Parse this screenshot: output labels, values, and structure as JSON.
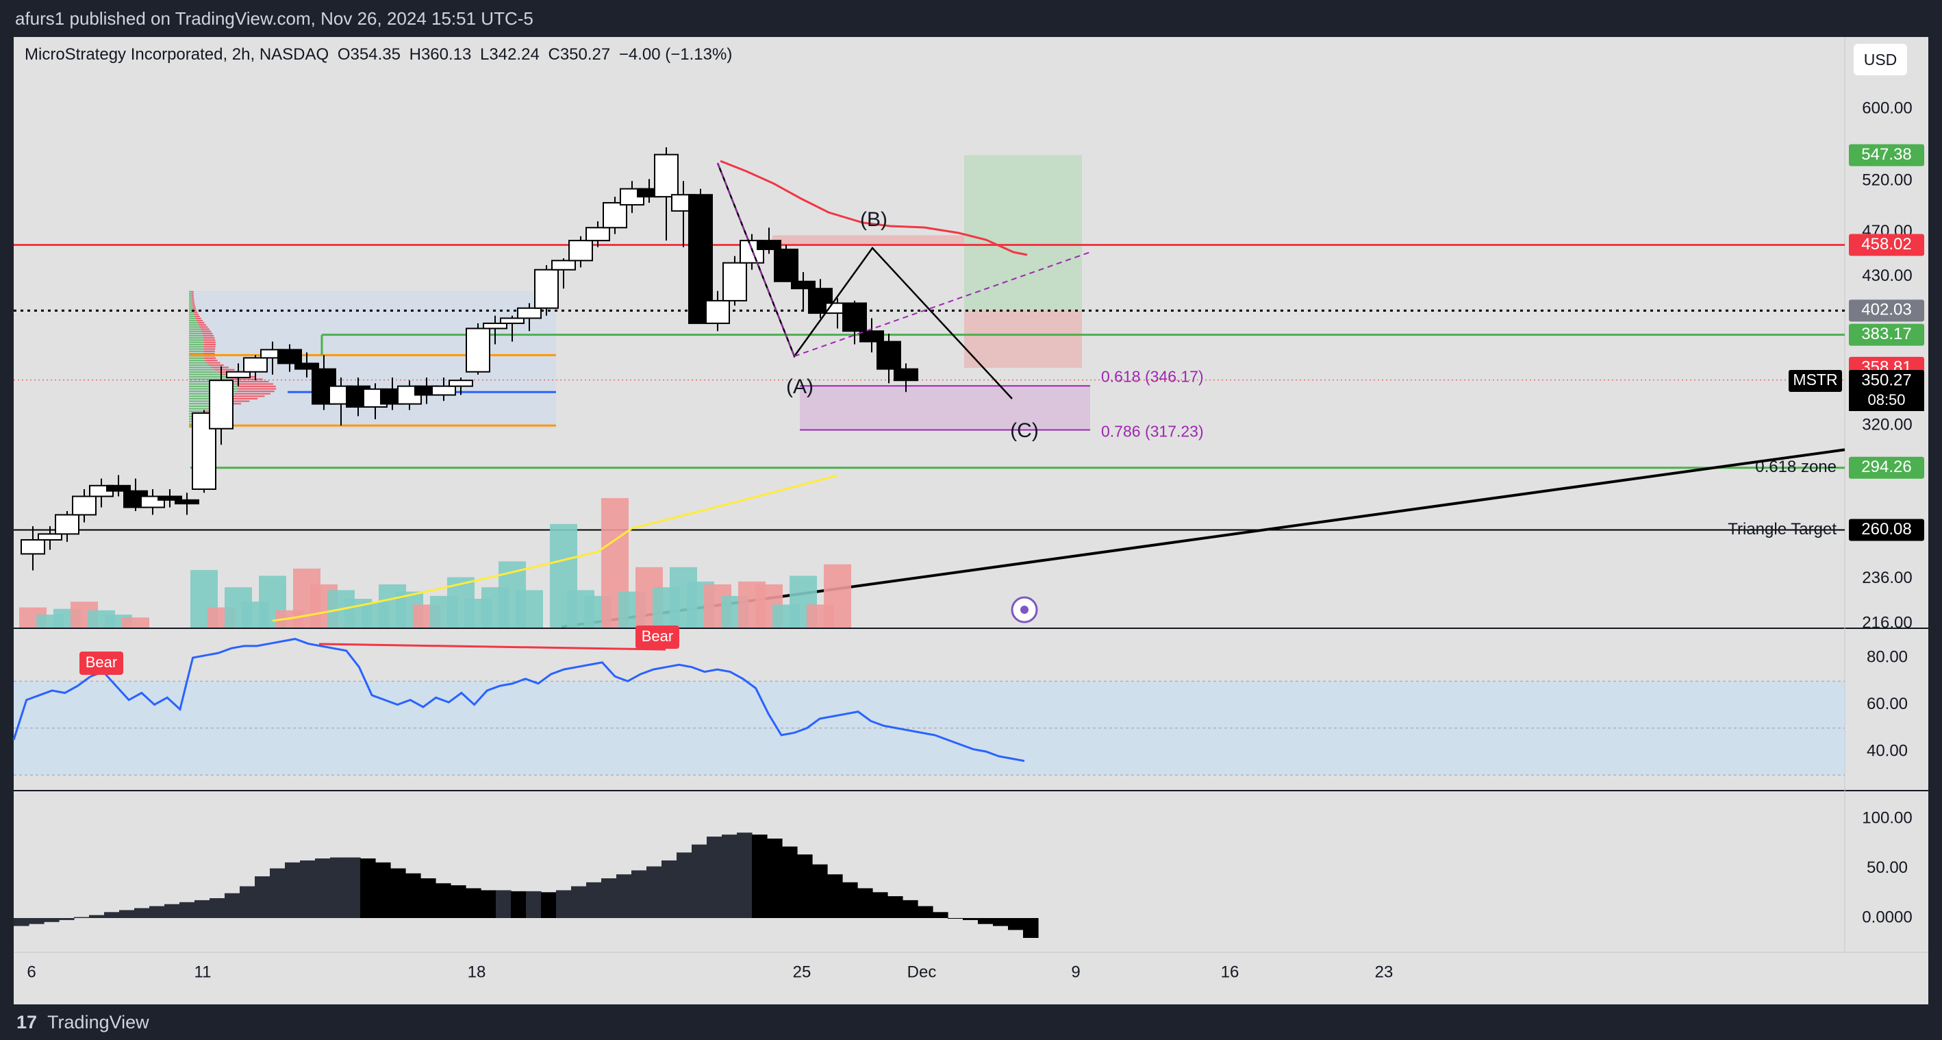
{
  "header": {
    "published": "afurs1 published on TradingView.com, Nov 26, 2024 15:51 UTC-5"
  },
  "footer": {
    "brand_glyph": "17",
    "brand": "TradingView"
  },
  "legend": {
    "instrument": "MicroStrategy Incorporated, 2h, NASDAQ",
    "open_label": "O",
    "open": "354.35",
    "high_label": "H",
    "high": "360.13",
    "low_label": "L",
    "low": "342.24",
    "close_label": "C",
    "close": "350.27",
    "change": "−4.00 (−1.13%)"
  },
  "currency_button": "USD",
  "colors": {
    "up": "#ffffff",
    "down": "#000000",
    "red": "#f23645",
    "green": "#4caf50",
    "blue": "#2962ff",
    "rsi": "#2962ff",
    "yellow": "#ffeb3b",
    "purple": "#9c27b0",
    "orange": "#ff9800"
  },
  "chart_data": [
    {
      "type": "candlestick",
      "panel": "price",
      "x_axis": {
        "ticks": [
          {
            "label": "6",
            "bar": 0
          },
          {
            "label": "11",
            "bar": 10
          },
          {
            "label": "18",
            "bar": 26
          },
          {
            "label": "25",
            "bar": 45
          },
          {
            "label": "Dec",
            "bar": 52
          },
          {
            "label": "9",
            "bar": 61
          },
          {
            "label": "16",
            "bar": 70
          },
          {
            "label": "23",
            "bar": 79
          }
        ]
      },
      "y_axis": {
        "ticks": [
          "600.00",
          "520.00",
          "470.00",
          "430.00",
          "320.00",
          "236.00",
          "216.00"
        ],
        "tick_values": [
          600,
          520,
          470,
          430,
          320,
          236,
          216
        ]
      },
      "price_labels": [
        {
          "text": "547.38",
          "value": 547.38,
          "color": "#4caf50"
        },
        {
          "text": "458.02",
          "value": 458.02,
          "color": "#f23645"
        },
        {
          "text": "402.03",
          "value": 402.03,
          "color": "#787b86"
        },
        {
          "text": "383.17",
          "value": 383.17,
          "color": "#4caf50"
        },
        {
          "text": "358.81",
          "value": 358.81,
          "color": "#f23645"
        },
        {
          "text": "350.27",
          "value": 350.27,
          "color": "#000000"
        },
        {
          "text": "294.26",
          "value": 294.26,
          "color": "#4caf50"
        },
        {
          "text": "260.08",
          "value": 260.08,
          "color": "#000000"
        }
      ],
      "symbol": "MSTR",
      "countdown": "08:50",
      "levels": [
        {
          "name": "0.618 zone",
          "value": 294.26,
          "color": "#4caf50"
        },
        {
          "name": "Triangle Target",
          "value": 260.08,
          "color": "#000000"
        },
        {
          "name": "",
          "value": 458.02,
          "color": "#f23645"
        },
        {
          "name": "",
          "value": 402.03,
          "color": "#000000",
          "dotted": true
        },
        {
          "name": "",
          "value": 383.17,
          "color": "#4caf50"
        }
      ],
      "fib_labels": [
        {
          "text": "0.618 (346.17)",
          "value": 346.17
        },
        {
          "text": "0.786 (317.23)",
          "value": 317.23
        }
      ],
      "wave_labels": [
        "(A)",
        "(B)",
        "(C)"
      ],
      "candles": [
        [
          248,
          262,
          240,
          255
        ],
        [
          255,
          262,
          250,
          258
        ],
        [
          258,
          270,
          254,
          268
        ],
        [
          268,
          282,
          264,
          278
        ],
        [
          278,
          288,
          272,
          284
        ],
        [
          284,
          290,
          278,
          281
        ],
        [
          281,
          288,
          270,
          272
        ],
        [
          272,
          282,
          268,
          278
        ],
        [
          278,
          282,
          272,
          276
        ],
        [
          276,
          280,
          268,
          274
        ],
        [
          282,
          330,
          280,
          328
        ],
        [
          318,
          360,
          308,
          350
        ],
        [
          352,
          362,
          346,
          356
        ],
        [
          356,
          368,
          350,
          366
        ],
        [
          366,
          378,
          354,
          372
        ],
        [
          372,
          376,
          356,
          362
        ],
        [
          362,
          370,
          352,
          358
        ],
        [
          358,
          368,
          330,
          334
        ],
        [
          334,
          352,
          320,
          346
        ],
        [
          346,
          352,
          326,
          332
        ],
        [
          332,
          348,
          324,
          344
        ],
        [
          344,
          352,
          330,
          334
        ],
        [
          334,
          350,
          330,
          346
        ],
        [
          346,
          352,
          334,
          340
        ],
        [
          340,
          352,
          336,
          346
        ],
        [
          346,
          352,
          340,
          350
        ],
        [
          356,
          392,
          354,
          388
        ],
        [
          388,
          398,
          376,
          392
        ],
        [
          392,
          398,
          378,
          396
        ],
        [
          396,
          408,
          386,
          404
        ],
        [
          404,
          440,
          398,
          436
        ],
        [
          436,
          446,
          420,
          444
        ],
        [
          444,
          466,
          438,
          462
        ],
        [
          462,
          480,
          456,
          474
        ],
        [
          474,
          504,
          468,
          498
        ],
        [
          496,
          520,
          488,
          512
        ],
        [
          512,
          522,
          498,
          504
        ],
        [
          504,
          556,
          462,
          548
        ],
        [
          490,
          520,
          456,
          506
        ],
        [
          506,
          512,
          392,
          392
        ],
        [
          392,
          418,
          386,
          410
        ],
        [
          410,
          448,
          406,
          442
        ],
        [
          442,
          468,
          436,
          462
        ],
        [
          462,
          474,
          450,
          454
        ],
        [
          454,
          458,
          426,
          426
        ],
        [
          426,
          434,
          402,
          420
        ],
        [
          420,
          428,
          396,
          400
        ],
        [
          400,
          412,
          388,
          408
        ],
        [
          408,
          410,
          376,
          386
        ],
        [
          386,
          396,
          370,
          378
        ],
        [
          378,
          384,
          348,
          358
        ],
        [
          358,
          362,
          342,
          350
        ]
      ],
      "volume": [
        {
          "bar": 0,
          "v": 14,
          "up": false
        },
        {
          "bar": 1,
          "v": 9,
          "up": true
        },
        {
          "bar": 2,
          "v": 13,
          "up": true
        },
        {
          "bar": 3,
          "v": 18,
          "up": false
        },
        {
          "bar": 4,
          "v": 12,
          "up": true
        },
        {
          "bar": 5,
          "v": 9,
          "up": true
        },
        {
          "bar": 6,
          "v": 7,
          "up": false
        },
        {
          "bar": 10,
          "v": 40,
          "up": true
        },
        {
          "bar": 11,
          "v": 14,
          "up": false
        },
        {
          "bar": 12,
          "v": 28,
          "up": true
        },
        {
          "bar": 13,
          "v": 18,
          "up": true
        },
        {
          "bar": 14,
          "v": 36,
          "up": true
        },
        {
          "bar": 15,
          "v": 12,
          "up": false
        },
        {
          "bar": 16,
          "v": 41,
          "up": false
        },
        {
          "bar": 17,
          "v": 30,
          "up": false
        },
        {
          "bar": 18,
          "v": 26,
          "up": true
        },
        {
          "bar": 19,
          "v": 20,
          "up": true
        },
        {
          "bar": 20,
          "v": 18,
          "up": true
        },
        {
          "bar": 21,
          "v": 30,
          "up": true
        },
        {
          "bar": 22,
          "v": 25,
          "up": true
        },
        {
          "bar": 23,
          "v": 16,
          "up": false
        },
        {
          "bar": 24,
          "v": 22,
          "up": true
        },
        {
          "bar": 25,
          "v": 35,
          "up": true
        },
        {
          "bar": 26,
          "v": 20,
          "up": true
        },
        {
          "bar": 27,
          "v": 28,
          "up": true
        },
        {
          "bar": 28,
          "v": 46,
          "up": true
        },
        {
          "bar": 29,
          "v": 26,
          "up": true
        },
        {
          "bar": 31,
          "v": 72,
          "up": true
        },
        {
          "bar": 32,
          "v": 26,
          "up": true
        },
        {
          "bar": 33,
          "v": 22,
          "up": true
        },
        {
          "bar": 34,
          "v": 90,
          "up": false
        },
        {
          "bar": 35,
          "v": 25,
          "up": true
        },
        {
          "bar": 36,
          "v": 42,
          "up": false
        },
        {
          "bar": 37,
          "v": 28,
          "up": true
        },
        {
          "bar": 38,
          "v": 42,
          "up": true
        },
        {
          "bar": 39,
          "v": 32,
          "up": true
        },
        {
          "bar": 40,
          "v": 30,
          "up": false
        },
        {
          "bar": 41,
          "v": 22,
          "up": true
        },
        {
          "bar": 42,
          "v": 32,
          "up": false
        },
        {
          "bar": 43,
          "v": 30,
          "up": false
        },
        {
          "bar": 44,
          "v": 16,
          "up": true
        },
        {
          "bar": 45,
          "v": 36,
          "up": true
        },
        {
          "bar": 46,
          "v": 16,
          "up": false
        },
        {
          "bar": 47,
          "v": 44,
          "up": false
        }
      ]
    },
    {
      "type": "line",
      "panel": "rsi",
      "y_axis": {
        "ticks": [
          "80.00",
          "60.00",
          "40.00"
        ],
        "tick_values": [
          80,
          60,
          40
        ]
      },
      "band": [
        30,
        70
      ],
      "divergence_labels": [
        "Bear",
        "Bear"
      ],
      "values": [
        45,
        62,
        64,
        66,
        65,
        68,
        72,
        74,
        68,
        62,
        65,
        60,
        63,
        58,
        80,
        81,
        82,
        84,
        85,
        85,
        86,
        87,
        88,
        86,
        85,
        84,
        83,
        76,
        64,
        62,
        60,
        62,
        59,
        63,
        61,
        65,
        60,
        66,
        68,
        69,
        71,
        69,
        73,
        75,
        76,
        77,
        78,
        72,
        70,
        73,
        75,
        76,
        77,
        76,
        74,
        75,
        74,
        71,
        67,
        56,
        47,
        48,
        50,
        54,
        55,
        56,
        57,
        53,
        51,
        50,
        49,
        48,
        47,
        45,
        43,
        41,
        40,
        38,
        37,
        36
      ]
    },
    {
      "type": "bar",
      "panel": "oscillator",
      "y_axis": {
        "ticks": [
          "100.00",
          "50.00",
          "0.0000"
        ],
        "tick_values": [
          100,
          50,
          0
        ]
      },
      "values": [
        -8,
        -6,
        -4,
        -2,
        1,
        3,
        6,
        8,
        10,
        12,
        14,
        16,
        18,
        20,
        25,
        32,
        42,
        50,
        56,
        58,
        60,
        61,
        61,
        60,
        56,
        50,
        45,
        40,
        35,
        33,
        30,
        28,
        28,
        27,
        27,
        26,
        28,
        32,
        36,
        40,
        44,
        48,
        52,
        58,
        66,
        74,
        82,
        84,
        86,
        84,
        80,
        72,
        64,
        54,
        44,
        36,
        30,
        26,
        22,
        18,
        12,
        6,
        0,
        -2,
        -6,
        -8,
        -12,
        -20
      ]
    }
  ]
}
